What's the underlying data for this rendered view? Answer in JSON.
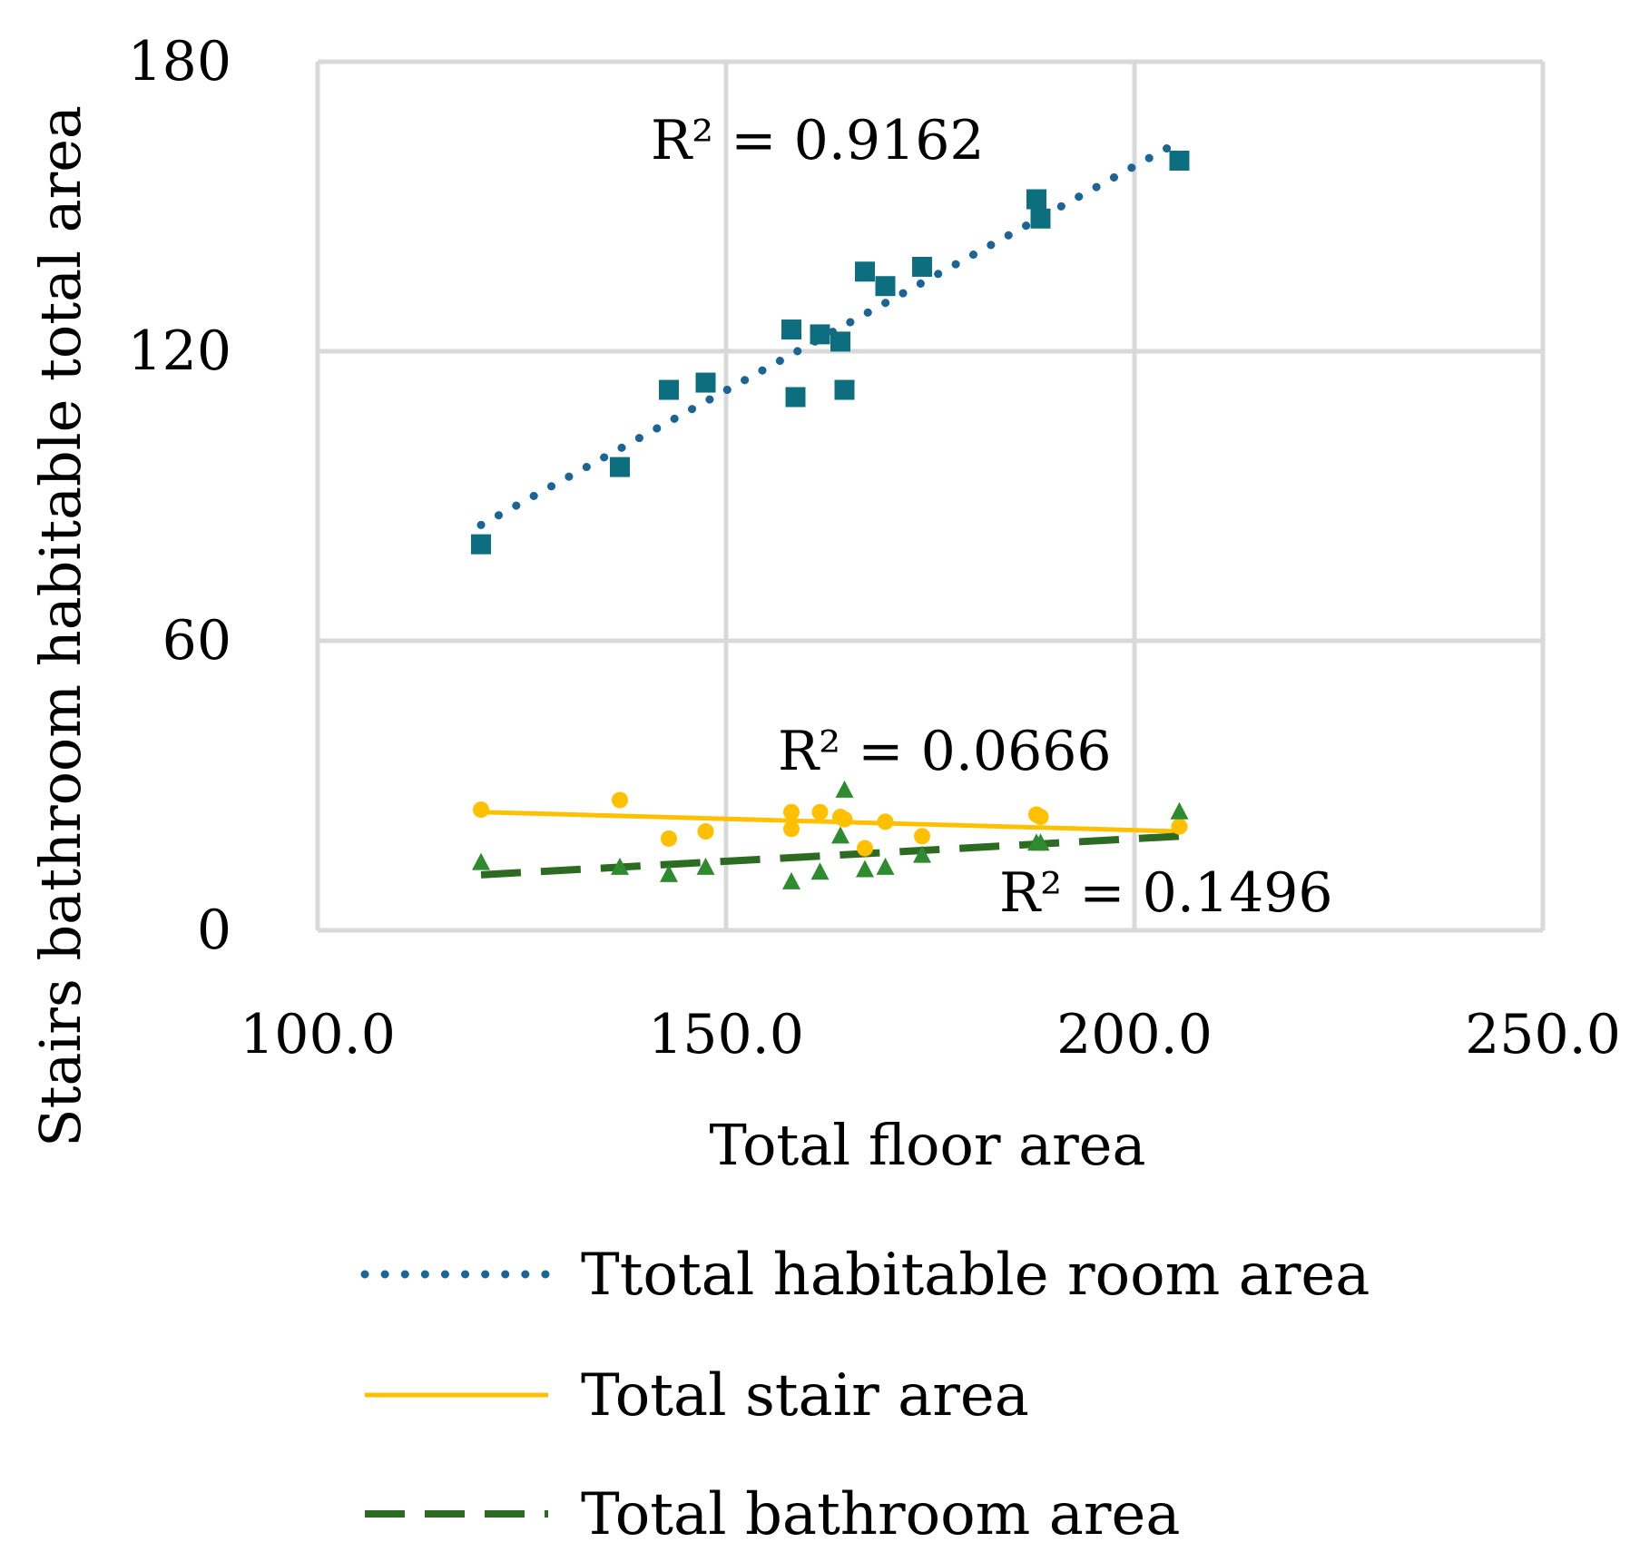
{
  "chart_data": {
    "type": "scatter",
    "title": "",
    "xlabel": "Total floor area",
    "ylabel": "Stairs bathroom habitable total area",
    "xlim": [
      100,
      250
    ],
    "ylim": [
      0,
      180
    ],
    "xticks": [
      100,
      150,
      200,
      250
    ],
    "yticks": [
      0,
      60,
      120,
      180
    ],
    "xtick_labels": [
      "100.0",
      "150.0",
      "200.0",
      "250.0"
    ],
    "ytick_labels": [
      "0",
      "60",
      "120",
      "180"
    ],
    "grid": true,
    "legend_position": "bottom",
    "series": [
      {
        "name": "Ttotal habitable room area",
        "color": "#0d6e80",
        "trend_color": "#1a6496",
        "marker": "square",
        "trendline": "dotted",
        "trend": {
          "x": [
            120,
            205
          ],
          "y": [
            84,
            163
          ]
        },
        "r2_label": "R² = 0.9162",
        "x": [
          120,
          137,
          143,
          147.5,
          158,
          158.5,
          161.5,
          164,
          164.5,
          167,
          169.5,
          174,
          188,
          188.5,
          205.5
        ],
        "y": [
          80,
          96,
          112,
          113.5,
          124.5,
          110.5,
          123.5,
          122,
          112,
          136.5,
          133.5,
          137.5,
          151.5,
          147.5,
          159.5
        ]
      },
      {
        "name": "Total stair area",
        "color": "#ffc000",
        "trend_color": "#ffc000",
        "marker": "circle",
        "trendline": "solid",
        "trend": {
          "x": [
            120,
            205.5
          ],
          "y": [
            24.5,
            20.5
          ]
        },
        "r2_label": "R² = 0.0666",
        "x": [
          120,
          137,
          143,
          147.5,
          158,
          158,
          161.5,
          164,
          164.5,
          167,
          169.5,
          174,
          188,
          188.5,
          205.5
        ],
        "y": [
          25,
          27,
          19,
          20.5,
          21,
          24.5,
          24.5,
          23.5,
          23,
          17,
          22.5,
          19.5,
          24,
          23.5,
          21.5
        ]
      },
      {
        "name": "Total bathroom area",
        "color": "#2e8b2e",
        "trend_color": "#2d6b22",
        "marker": "triangle",
        "trendline": "dashed",
        "trend": {
          "x": [
            120,
            205.5
          ],
          "y": [
            11.5,
            19.5
          ]
        },
        "r2_label": "R² = 0.1496",
        "x": [
          120,
          137,
          143,
          147.5,
          158,
          161.5,
          164,
          164.5,
          167,
          169.5,
          174,
          188,
          188.5,
          205.5
        ],
        "y": [
          14,
          13,
          11.5,
          13,
          10,
          12,
          19.5,
          29,
          12.5,
          13,
          15.5,
          18,
          18,
          24.5
        ]
      }
    ]
  }
}
